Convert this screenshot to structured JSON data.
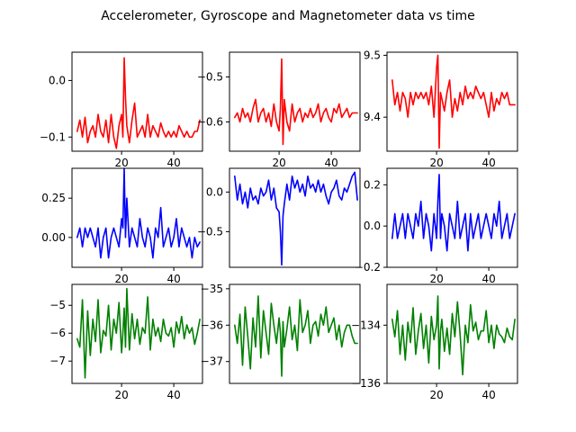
{
  "figure": {
    "title": "Accelerometer, Gyroscope and Magnetometer data vs time"
  },
  "chart_data": [
    {
      "type": "line",
      "color": "#ff0000",
      "xlim": [
        1,
        51
      ],
      "ylim": [
        -0.125,
        0.05
      ],
      "xticks": [
        20,
        40
      ],
      "yticks": [
        0.0,
        -0.1
      ],
      "ytick_labels": [
        "0.0",
        "−0.1"
      ],
      "x": [
        3,
        4,
        5,
        6,
        7,
        8,
        9,
        10,
        11,
        12,
        13,
        14,
        15,
        16,
        17,
        18,
        19,
        20,
        20.5,
        21,
        21.5,
        22,
        23,
        24,
        25,
        26,
        27,
        28,
        29,
        30,
        31,
        32,
        33,
        34,
        35,
        36,
        37,
        38,
        39,
        40,
        41,
        42,
        43,
        44,
        45,
        46,
        47,
        48,
        49,
        50
      ],
      "y": [
        -0.09,
        -0.07,
        -0.1,
        -0.065,
        -0.11,
        -0.09,
        -0.08,
        -0.1,
        -0.06,
        -0.09,
        -0.1,
        -0.07,
        -0.11,
        -0.06,
        -0.1,
        -0.12,
        -0.08,
        -0.06,
        -0.1,
        0.04,
        -0.03,
        -0.08,
        -0.11,
        -0.07,
        -0.04,
        -0.1,
        -0.09,
        -0.08,
        -0.1,
        -0.06,
        -0.1,
        -0.08,
        -0.09,
        -0.1,
        -0.075,
        -0.09,
        -0.1,
        -0.09,
        -0.1,
        -0.09,
        -0.1,
        -0.08,
        -0.09,
        -0.1,
        -0.09,
        -0.1,
        -0.1,
        -0.09,
        -0.09,
        -0.07
      ]
    },
    {
      "type": "line",
      "color": "#ff0000",
      "xlim": [
        1,
        51
      ],
      "ylim": [
        -0.665,
        -0.445
      ],
      "xticks": [
        20,
        40
      ],
      "yticks": [
        -0.5,
        -0.6
      ],
      "ytick_labels": [
        "−0.5",
        "−0.6"
      ],
      "x": [
        3,
        4,
        5,
        6,
        7,
        8,
        9,
        10,
        11,
        12,
        13,
        14,
        15,
        16,
        17,
        18,
        19,
        20,
        20.5,
        21,
        21.5,
        22,
        23,
        24,
        25,
        26,
        27,
        28,
        29,
        30,
        31,
        32,
        33,
        34,
        35,
        36,
        37,
        38,
        39,
        40,
        41,
        42,
        43,
        44,
        45,
        46,
        47,
        48,
        49,
        50
      ],
      "y": [
        -0.59,
        -0.58,
        -0.6,
        -0.57,
        -0.59,
        -0.58,
        -0.6,
        -0.57,
        -0.55,
        -0.6,
        -0.58,
        -0.57,
        -0.6,
        -0.58,
        -0.61,
        -0.56,
        -0.6,
        -0.62,
        -0.57,
        -0.46,
        -0.65,
        -0.55,
        -0.6,
        -0.62,
        -0.56,
        -0.6,
        -0.58,
        -0.57,
        -0.6,
        -0.58,
        -0.59,
        -0.57,
        -0.59,
        -0.58,
        -0.56,
        -0.6,
        -0.58,
        -0.57,
        -0.59,
        -0.6,
        -0.57,
        -0.58,
        -0.56,
        -0.59,
        -0.58,
        -0.57,
        -0.59,
        -0.58,
        -0.58,
        -0.58
      ]
    },
    {
      "type": "line",
      "color": "#ff0000",
      "xlim": [
        1,
        51
      ],
      "ylim": [
        9.345,
        9.505
      ],
      "xticks": [
        20,
        40
      ],
      "yticks": [
        9.5,
        9.4
      ],
      "ytick_labels": [
        "9.5",
        "9.4"
      ],
      "x": [
        3,
        4,
        5,
        6,
        7,
        8,
        9,
        10,
        11,
        12,
        13,
        14,
        15,
        16,
        17,
        18,
        19,
        20,
        20.5,
        21,
        21.5,
        22,
        23,
        24,
        25,
        26,
        27,
        28,
        29,
        30,
        31,
        32,
        33,
        34,
        35,
        36,
        37,
        38,
        39,
        40,
        41,
        42,
        43,
        44,
        45,
        46,
        47,
        48,
        49,
        50
      ],
      "y": [
        9.46,
        9.42,
        9.44,
        9.41,
        9.44,
        9.43,
        9.4,
        9.44,
        9.42,
        9.44,
        9.43,
        9.44,
        9.43,
        9.44,
        9.42,
        9.45,
        9.4,
        9.48,
        9.5,
        9.35,
        9.44,
        9.43,
        9.41,
        9.44,
        9.46,
        9.4,
        9.43,
        9.41,
        9.44,
        9.42,
        9.45,
        9.43,
        9.44,
        9.43,
        9.45,
        9.44,
        9.43,
        9.44,
        9.42,
        9.4,
        9.44,
        9.41,
        9.43,
        9.42,
        9.44,
        9.43,
        9.44,
        9.42,
        9.42,
        9.42
      ]
    },
    {
      "type": "line",
      "color": "#0000ff",
      "xlim": [
        1,
        51
      ],
      "ylim": [
        -0.19,
        0.44
      ],
      "xticks": [
        20,
        40
      ],
      "yticks": [
        0.25,
        0.0
      ],
      "ytick_labels": [
        "0.25",
        "0.00"
      ],
      "x": [
        3,
        4,
        5,
        6,
        7,
        8,
        9,
        10,
        11,
        12,
        13,
        14,
        15,
        16,
        17,
        18,
        19,
        20,
        20.5,
        21,
        21.5,
        22,
        23,
        24,
        25,
        26,
        27,
        28,
        29,
        30,
        31,
        32,
        33,
        34,
        35,
        36,
        37,
        38,
        39,
        40,
        41,
        42,
        43,
        44,
        45,
        46,
        47,
        48,
        49,
        50
      ],
      "y": [
        0.0,
        0.06,
        -0.06,
        0.06,
        0.0,
        0.06,
        0.0,
        -0.06,
        0.06,
        -0.13,
        0.0,
        0.06,
        -0.13,
        0.0,
        0.06,
        0.0,
        -0.06,
        0.12,
        0.06,
        0.44,
        0.0,
        0.25,
        -0.06,
        0.06,
        0.0,
        -0.06,
        0.12,
        0.0,
        -0.06,
        0.06,
        0.0,
        -0.13,
        0.06,
        0.0,
        0.19,
        -0.06,
        0.0,
        0.06,
        -0.06,
        0.0,
        0.12,
        -0.06,
        0.06,
        0.0,
        -0.06,
        0.0,
        -0.13,
        0.0,
        -0.06,
        -0.03
      ]
    },
    {
      "type": "line",
      "color": "#0000ff",
      "xlim": [
        1,
        51
      ],
      "ylim": [
        -0.95,
        0.3
      ],
      "xticks": [
        0
      ],
      "yticks": [
        0.0,
        -0.5
      ],
      "ytick_labels": [
        "0.0",
        "−0.5"
      ],
      "show_x_tick_labels": false,
      "x": [
        3,
        4,
        5,
        6,
        7,
        8,
        9,
        10,
        11,
        12,
        13,
        14,
        15,
        16,
        17,
        18,
        19,
        20,
        20.5,
        21,
        21.5,
        22,
        23,
        24,
        25,
        26,
        27,
        28,
        29,
        30,
        31,
        32,
        33,
        34,
        35,
        36,
        37,
        38,
        39,
        40,
        41,
        42,
        43,
        44,
        45,
        46,
        47,
        48,
        49,
        50
      ],
      "y": [
        0.2,
        -0.1,
        0.1,
        -0.15,
        0.0,
        -0.2,
        0.05,
        -0.1,
        -0.05,
        -0.15,
        0.05,
        -0.05,
        0.0,
        0.15,
        -0.1,
        0.05,
        -0.2,
        -0.25,
        -0.5,
        -0.92,
        -0.3,
        -0.15,
        0.1,
        -0.1,
        0.2,
        0.05,
        0.15,
        0.0,
        0.1,
        -0.05,
        0.2,
        0.05,
        0.1,
        0.0,
        0.15,
        0.0,
        0.1,
        -0.05,
        -0.15,
        0.0,
        0.05,
        0.15,
        -0.05,
        -0.1,
        0.05,
        0.0,
        0.1,
        0.2,
        0.25,
        -0.1
      ]
    },
    {
      "type": "line",
      "color": "#0000ff",
      "xlim": [
        1,
        51
      ],
      "ylim": [
        -0.2,
        0.28
      ],
      "xticks": [
        20,
        40
      ],
      "yticks": [
        0.2,
        0.0,
        -0.2
      ],
      "ytick_labels": [
        "0.2",
        "0.0",
        "−0.2"
      ],
      "x": [
        3,
        4,
        5,
        6,
        7,
        8,
        9,
        10,
        11,
        12,
        13,
        14,
        15,
        16,
        17,
        18,
        19,
        20,
        20.5,
        21,
        21.5,
        22,
        23,
        24,
        25,
        26,
        27,
        28,
        29,
        30,
        31,
        32,
        33,
        34,
        35,
        36,
        37,
        38,
        39,
        40,
        41,
        42,
        43,
        44,
        45,
        46,
        47,
        48,
        49,
        50
      ],
      "y": [
        -0.06,
        0.06,
        -0.06,
        0.0,
        0.06,
        -0.06,
        0.06,
        0.0,
        -0.06,
        0.06,
        0.0,
        0.12,
        -0.06,
        0.06,
        0.0,
        -0.12,
        0.06,
        -0.06,
        0.12,
        0.25,
        -0.06,
        0.06,
        0.0,
        -0.12,
        0.06,
        0.0,
        -0.06,
        0.12,
        -0.06,
        0.0,
        0.06,
        -0.12,
        0.06,
        -0.06,
        0.0,
        0.06,
        -0.06,
        0.0,
        0.06,
        0.0,
        -0.06,
        0.06,
        0.0,
        0.12,
        -0.06,
        0.0,
        0.06,
        -0.06,
        0.0,
        0.06
      ]
    },
    {
      "type": "line",
      "color": "#008000",
      "xlim": [
        1,
        51
      ],
      "ylim": [
        -7.8,
        -4.25
      ],
      "xticks": [
        20,
        40
      ],
      "yticks": [
        -5,
        -6,
        -7
      ],
      "ytick_labels": [
        "−5",
        "−6",
        "−7"
      ],
      "x": [
        3,
        4,
        5,
        6,
        7,
        8,
        9,
        10,
        11,
        12,
        13,
        14,
        15,
        16,
        17,
        18,
        19,
        20,
        20.5,
        21,
        21.5,
        22,
        23,
        24,
        25,
        26,
        27,
        28,
        29,
        30,
        31,
        32,
        33,
        34,
        35,
        36,
        37,
        38,
        39,
        40,
        41,
        42,
        43,
        44,
        45,
        46,
        47,
        48,
        49,
        50
      ],
      "y": [
        -6.2,
        -6.5,
        -4.8,
        -7.6,
        -5.2,
        -6.8,
        -5.5,
        -6.3,
        -4.8,
        -6.7,
        -5.9,
        -6.1,
        -5.0,
        -6.6,
        -5.5,
        -6.0,
        -4.9,
        -6.7,
        -6.0,
        -5.1,
        -6.5,
        -4.4,
        -6.6,
        -5.3,
        -6.2,
        -5.5,
        -6.4,
        -5.8,
        -6.0,
        -4.7,
        -6.6,
        -5.5,
        -6.1,
        -5.8,
        -6.3,
        -5.5,
        -6.0,
        -6.1,
        -5.8,
        -6.5,
        -5.6,
        -6.0,
        -5.4,
        -6.2,
        -5.7,
        -6.0,
        -5.8,
        -6.4,
        -6.0,
        -5.5
      ]
    },
    {
      "type": "line",
      "color": "#008000",
      "xlim": [
        1,
        51
      ],
      "ylim": [
        -37.6,
        -34.88
      ],
      "xticks": [
        0
      ],
      "yticks": [
        -35,
        -36,
        -37
      ],
      "ytick_labels": [
        "−35",
        "−36",
        "−37"
      ],
      "show_x_tick_labels": false,
      "x": [
        3,
        4,
        5,
        6,
        7,
        8,
        9,
        10,
        11,
        12,
        13,
        14,
        15,
        16,
        17,
        18,
        19,
        20,
        20.5,
        21,
        21.5,
        22,
        23,
        24,
        25,
        26,
        27,
        28,
        29,
        30,
        31,
        32,
        33,
        34,
        35,
        36,
        37,
        38,
        39,
        40,
        41,
        42,
        43,
        44,
        45,
        46,
        47,
        48,
        49,
        50
      ],
      "y": [
        -36.0,
        -36.5,
        -35.7,
        -37.1,
        -35.5,
        -36.3,
        -37.2,
        -35.8,
        -36.6,
        -35.2,
        -36.9,
        -35.6,
        -36.2,
        -36.8,
        -35.4,
        -36.0,
        -36.5,
        -35.8,
        -36.2,
        -37.4,
        -35.9,
        -36.6,
        -36.1,
        -35.5,
        -36.4,
        -36.0,
        -36.7,
        -35.3,
        -36.2,
        -36.0,
        -35.6,
        -36.5,
        -36.0,
        -35.9,
        -36.3,
        -35.7,
        -36.0,
        -35.5,
        -36.2,
        -36.0,
        -35.8,
        -36.4,
        -36.0,
        -36.6,
        -36.2,
        -36.0,
        -36.0,
        -36.3,
        -36.5,
        -36.5
      ]
    },
    {
      "type": "line",
      "color": "#008000",
      "xlim": [
        1,
        51
      ],
      "ylim": [
        -136.0,
        -132.6
      ],
      "xticks": [
        20,
        40
      ],
      "yticks": [
        -134,
        -136
      ],
      "ytick_labels": [
        "−134",
        "−136"
      ],
      "x": [
        3,
        4,
        5,
        6,
        7,
        8,
        9,
        10,
        11,
        12,
        13,
        14,
        15,
        16,
        17,
        18,
        19,
        20,
        20.5,
        21,
        21.5,
        22,
        23,
        24,
        25,
        26,
        27,
        28,
        29,
        30,
        31,
        32,
        33,
        34,
        35,
        36,
        37,
        38,
        39,
        40,
        41,
        42,
        43,
        44,
        45,
        46,
        47,
        48,
        49,
        50
      ],
      "y": [
        -133.8,
        -134.4,
        -133.5,
        -135.0,
        -134.0,
        -135.2,
        -133.9,
        -134.6,
        -133.4,
        -135.0,
        -134.2,
        -133.6,
        -134.8,
        -134.0,
        -135.3,
        -133.7,
        -134.5,
        -134.0,
        -133.0,
        -135.5,
        -134.2,
        -133.8,
        -134.9,
        -134.1,
        -135.0,
        -133.6,
        -134.4,
        -133.2,
        -134.3,
        -135.7,
        -134.0,
        -134.6,
        -133.3,
        -134.2,
        -133.9,
        -134.5,
        -134.2,
        -134.2,
        -133.5,
        -134.6,
        -134.0,
        -134.8,
        -134.0,
        -134.3,
        -134.4,
        -134.6,
        -134.1,
        -134.4,
        -134.5,
        -133.8
      ]
    }
  ]
}
